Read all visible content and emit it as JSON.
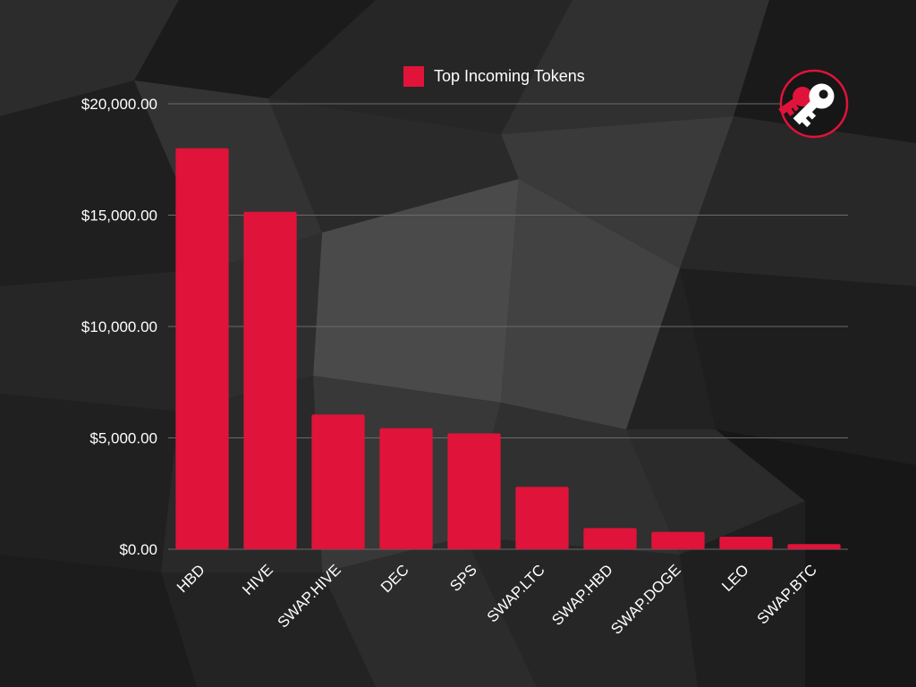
{
  "chart_data": {
    "type": "bar",
    "categories": [
      "HBD",
      "HIVE",
      "SWAP.HIVE",
      "DEC",
      "SPS",
      "SWAP.LTC",
      "SWAP.HBD",
      "SWAP.DOGE",
      "LEO",
      "SWAP.BTC"
    ],
    "series": [
      {
        "name": "Top Incoming Tokens",
        "values": [
          18000,
          15150,
          6050,
          5430,
          5200,
          2800,
          950,
          780,
          560,
          230
        ]
      }
    ],
    "title": "",
    "xlabel": "",
    "ylabel": "",
    "ylim": [
      0,
      20000
    ],
    "yticks": [
      0,
      5000,
      10000,
      15000,
      20000
    ],
    "ytick_labels": [
      "$0.00",
      "$5,000.00",
      "$10,000.00",
      "$15,000.00",
      "$20,000.00"
    ],
    "legend_position": "top-center",
    "grid": true
  },
  "colors": {
    "bar": "#e0133a",
    "grid": "#6a6a6a",
    "text": "#ffffff"
  },
  "logo": {
    "icon": "key-logo-icon"
  }
}
